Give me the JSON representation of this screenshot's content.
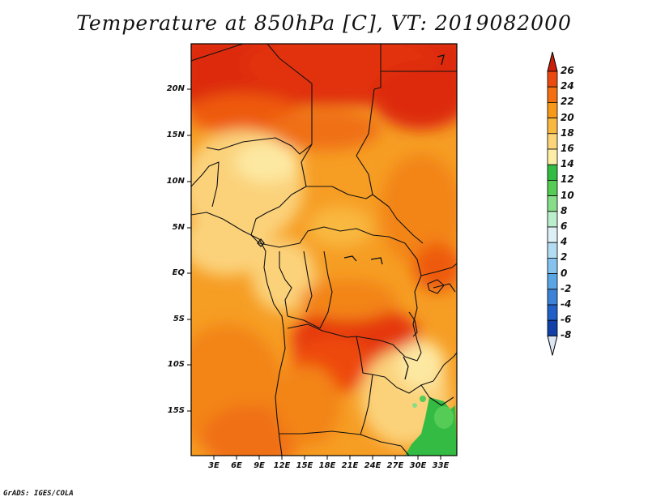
{
  "title": "Temperature at 850hPa [C], VT: 2019082000",
  "credit": "GrADS: IGES/COLA",
  "map": {
    "lon_labels": [
      "3E",
      "6E",
      "9E",
      "12E",
      "15E",
      "18E",
      "21E",
      "24E",
      "27E",
      "30E",
      "33E"
    ],
    "lat_labels": [
      "20N",
      "15N",
      "10N",
      "5N",
      "EQ",
      "5S",
      "10S",
      "15S"
    ]
  },
  "colorbar": {
    "labels": [
      "26",
      "24",
      "22",
      "20",
      "18",
      "16",
      "14",
      "12",
      "10",
      "8",
      "6",
      "4",
      "2",
      "0",
      "-2",
      "-4",
      "-6",
      "-8"
    ],
    "colors": [
      "#e2280f",
      "#eb4a0f",
      "#f36f10",
      "#f6991a",
      "#f9b840",
      "#fcd57a",
      "#fdeea7",
      "#33bb44",
      "#55cc55",
      "#88dd88",
      "#bbeecc",
      "#ddf0f6",
      "#b3dcf2",
      "#86c2ee",
      "#5aa6e4",
      "#3b82d8",
      "#2060c8",
      "#1040a8",
      "#06207a"
    ],
    "over_color": "#c81e0a",
    "under_color": "#dde6f6"
  }
}
